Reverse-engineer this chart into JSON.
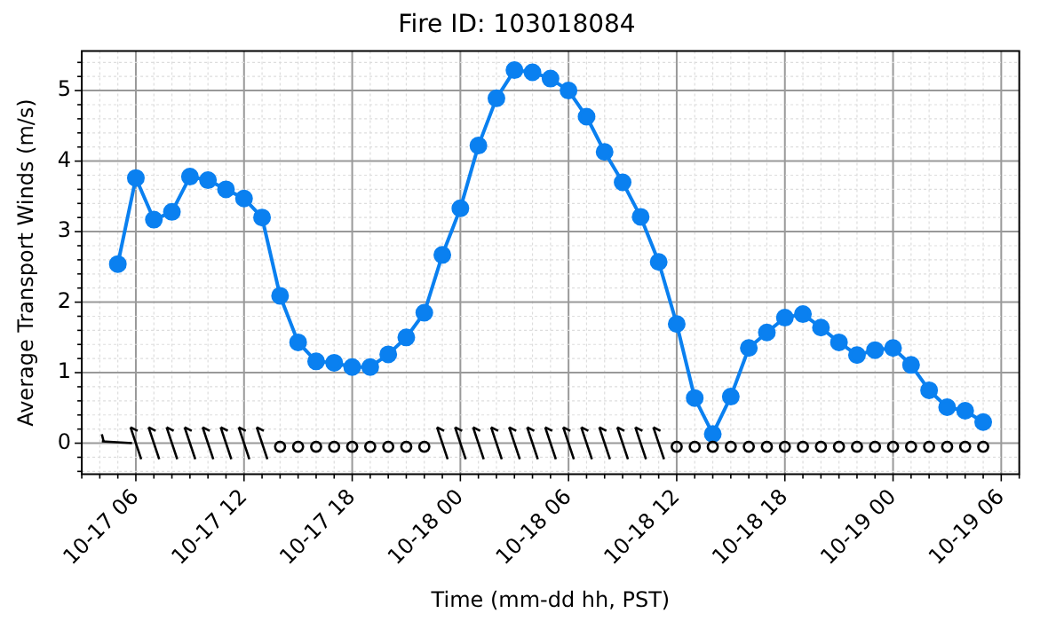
{
  "chart_data": {
    "type": "line",
    "title": "Fire ID: 103018084",
    "xlabel": "Time (mm-dd hh, PST)",
    "ylabel": "Average Transport Winds (m/s)",
    "x": [
      "--10-17T05:00",
      "--10-17T06:00",
      "--10-17T07:00",
      "--10-17T08:00",
      "--10-17T09:00",
      "--10-17T10:00",
      "--10-17T11:00",
      "--10-17T12:00",
      "--10-17T13:00",
      "--10-17T14:00",
      "--10-17T15:00",
      "--10-17T16:00",
      "--10-17T17:00",
      "--10-17T18:00",
      "--10-17T19:00",
      "--10-17T20:00",
      "--10-17T21:00",
      "--10-17T22:00",
      "--10-17T23:00",
      "--10-18T00:00",
      "--10-18T01:00",
      "--10-18T02:00",
      "--10-18T03:00",
      "--10-18T04:00",
      "--10-18T05:00",
      "--10-18T06:00",
      "--10-18T07:00",
      "--10-18T08:00",
      "--10-18T09:00",
      "--10-18T10:00",
      "--10-18T11:00",
      "--10-18T12:00",
      "--10-18T13:00",
      "--10-18T14:00",
      "--10-18T15:00",
      "--10-18T16:00",
      "--10-18T17:00",
      "--10-18T18:00",
      "--10-18T19:00",
      "--10-18T20:00",
      "--10-18T21:00",
      "--10-18T22:00",
      "--10-18T23:00",
      "--10-19T00:00",
      "--10-19T01:00",
      "--10-19T02:00",
      "--10-19T03:00",
      "--10-19T04:00",
      "--10-19T05:00"
    ],
    "series": [
      {
        "color": "#0a80f0",
        "values": [
          2.54,
          3.76,
          3.17,
          3.28,
          3.78,
          3.73,
          3.6,
          3.47,
          3.2,
          2.09,
          1.43,
          1.16,
          1.14,
          1.08,
          1.08,
          1.26,
          1.5,
          1.85,
          2.67,
          3.33,
          4.22,
          4.89,
          5.29,
          5.26,
          5.17,
          5.0,
          4.63,
          4.13,
          3.7,
          3.21,
          2.57,
          1.69,
          0.64,
          0.13,
          0.66,
          1.35,
          1.57,
          1.78,
          1.83,
          1.64,
          1.43,
          1.25,
          1.32,
          1.35,
          1.11,
          0.75,
          0.51,
          0.46,
          0.3
        ]
      }
    ],
    "marker": "circle",
    "line_style": "solid",
    "grid": true,
    "legend": false,
    "xlim": [
      "--10-17T03:00",
      "--10-19T07:00"
    ],
    "xticks": [
      {
        "value": "--10-17T03:00",
        "label": null
      },
      {
        "value": "--10-17T04:00",
        "label": null
      },
      {
        "value": "--10-17T05:00",
        "label": null
      },
      {
        "value": "--10-17T06:00",
        "label": "10-17 06"
      },
      {
        "value": "--10-17T07:00",
        "label": null
      },
      {
        "value": "--10-17T08:00",
        "label": null
      },
      {
        "value": "--10-17T09:00",
        "label": null
      },
      {
        "value": "--10-17T10:00",
        "label": null
      },
      {
        "value": "--10-17T11:00",
        "label": null
      },
      {
        "value": "--10-17T12:00",
        "label": "10-17 12"
      },
      {
        "value": "--10-17T13:00",
        "label": null
      },
      {
        "value": "--10-17T14:00",
        "label": null
      },
      {
        "value": "--10-17T15:00",
        "label": null
      },
      {
        "value": "--10-17T16:00",
        "label": null
      },
      {
        "value": "--10-17T17:00",
        "label": null
      },
      {
        "value": "--10-17T18:00",
        "label": "10-17 18"
      },
      {
        "value": "--10-17T19:00",
        "label": null
      },
      {
        "value": "--10-17T20:00",
        "label": null
      },
      {
        "value": "--10-17T21:00",
        "label": null
      },
      {
        "value": "--10-17T22:00",
        "label": null
      },
      {
        "value": "--10-17T23:00",
        "label": null
      },
      {
        "value": "--10-18T00:00",
        "label": "10-18 00"
      },
      {
        "value": "--10-18T01:00",
        "label": null
      },
      {
        "value": "--10-18T02:00",
        "label": null
      },
      {
        "value": "--10-18T03:00",
        "label": null
      },
      {
        "value": "--10-18T04:00",
        "label": null
      },
      {
        "value": "--10-18T05:00",
        "label": null
      },
      {
        "value": "--10-18T06:00",
        "label": "10-18 06"
      },
      {
        "value": "--10-18T07:00",
        "label": null
      },
      {
        "value": "--10-18T08:00",
        "label": null
      },
      {
        "value": "--10-18T09:00",
        "label": null
      },
      {
        "value": "--10-18T10:00",
        "label": null
      },
      {
        "value": "--10-18T11:00",
        "label": null
      },
      {
        "value": "--10-18T12:00",
        "label": "10-18 12"
      },
      {
        "value": "--10-18T13:00",
        "label": null
      },
      {
        "value": "--10-18T14:00",
        "label": null
      },
      {
        "value": "--10-18T15:00",
        "label": null
      },
      {
        "value": "--10-18T16:00",
        "label": null
      },
      {
        "value": "--10-18T17:00",
        "label": null
      },
      {
        "value": "--10-18T18:00",
        "label": "10-18 18"
      },
      {
        "value": "--10-18T19:00",
        "label": null
      },
      {
        "value": "--10-18T20:00",
        "label": null
      },
      {
        "value": "--10-18T21:00",
        "label": null
      },
      {
        "value": "--10-18T22:00",
        "label": null
      },
      {
        "value": "--10-18T23:00",
        "label": null
      },
      {
        "value": "--10-19T00:00",
        "label": "10-19 00"
      },
      {
        "value": "--10-19T01:00",
        "label": null
      },
      {
        "value": "--10-19T02:00",
        "label": null
      },
      {
        "value": "--10-19T03:00",
        "label": null
      },
      {
        "value": "--10-19T04:00",
        "label": null
      },
      {
        "value": "--10-19T05:00",
        "label": null
      },
      {
        "value": "--10-19T06:00",
        "label": "10-19 06"
      },
      {
        "value": "--10-19T07:00",
        "label": null
      }
    ],
    "ylim": [
      -0.44,
      5.56
    ],
    "yticks": [
      {
        "value": -0.4,
        "label": null
      },
      {
        "value": -0.2,
        "label": null
      },
      0,
      {
        "value": 0.2,
        "label": null
      },
      {
        "value": 0.4,
        "label": null
      },
      {
        "value": 0.6,
        "label": null
      },
      {
        "value": 0.8,
        "label": null
      },
      1,
      {
        "value": 1.2,
        "label": null
      },
      {
        "value": 1.4,
        "label": null
      },
      {
        "value": 1.6,
        "label": null
      },
      {
        "value": 1.8,
        "label": null
      },
      2,
      {
        "value": 2.2,
        "label": null
      },
      {
        "value": 2.4,
        "label": null
      },
      {
        "value": 2.6,
        "label": null
      },
      {
        "value": 2.8,
        "label": null
      },
      3,
      {
        "value": 3.2,
        "label": null
      },
      {
        "value": 3.4,
        "label": null
      },
      {
        "value": 3.6,
        "label": null
      },
      {
        "value": 3.8,
        "label": null
      },
      4,
      {
        "value": 4.2,
        "label": null
      },
      {
        "value": 4.4,
        "label": null
      },
      {
        "value": 4.6,
        "label": null
      },
      {
        "value": 4.8,
        "label": null
      },
      5,
      {
        "value": 5.2,
        "label": null
      },
      {
        "value": 5.4,
        "label": null
      }
    ]
  }
}
